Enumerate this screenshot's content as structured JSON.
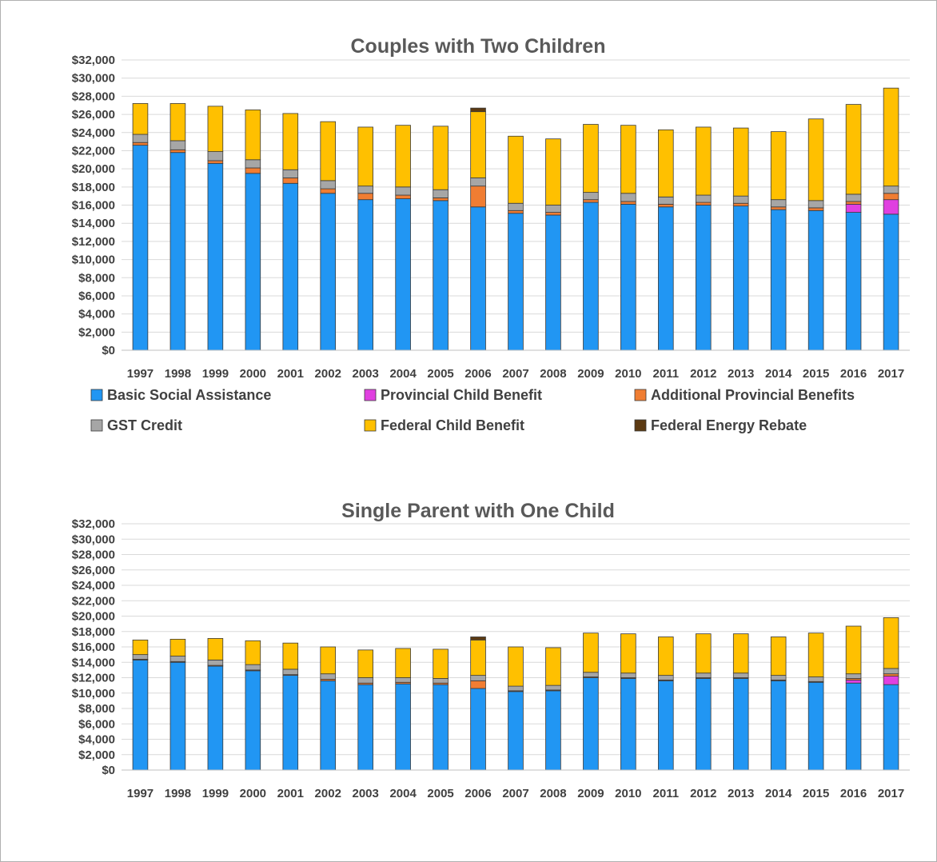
{
  "chart_data": [
    {
      "type": "bar",
      "stacked": true,
      "title": "Couples with Two Children",
      "categories": [
        "1997",
        "1998",
        "1999",
        "2000",
        "2001",
        "2002",
        "2003",
        "2004",
        "2005",
        "2006",
        "2007",
        "2008",
        "2009",
        "2010",
        "2011",
        "2012",
        "2013",
        "2014",
        "2015",
        "2016",
        "2017"
      ],
      "ylim": [
        0,
        32000
      ],
      "y_ticks": [
        "$0",
        "$2,000",
        "$4,000",
        "$6,000",
        "$8,000",
        "$10,000",
        "$12,000",
        "$14,000",
        "$16,000",
        "$18,000",
        "$20,000",
        "$22,000",
        "$24,000",
        "$26,000",
        "$28,000",
        "$30,000",
        "$32,000"
      ],
      "grid": true,
      "legend_position": "bottom",
      "series": [
        {
          "name": "Basic Social Assistance",
          "color": "#2196f3",
          "values": [
            22600,
            21800,
            20600,
            19500,
            18400,
            17300,
            16600,
            16700,
            16500,
            15800,
            15100,
            14900,
            16300,
            16100,
            15800,
            16000,
            15900,
            15500,
            15400,
            15200,
            15000
          ]
        },
        {
          "name": "Provincial Child Benefit",
          "color": "#e040e0",
          "values": [
            0,
            0,
            0,
            0,
            0,
            0,
            0,
            0,
            0,
            0,
            0,
            0,
            0,
            0,
            0,
            0,
            0,
            0,
            0,
            900,
            1600
          ]
        },
        {
          "name": "Additional Provincial Benefits",
          "color": "#f07d32",
          "values": [
            300,
            300,
            300,
            600,
            600,
            500,
            700,
            400,
            300,
            2300,
            300,
            300,
            300,
            300,
            300,
            300,
            300,
            300,
            300,
            300,
            700
          ]
        },
        {
          "name": "GST Credit",
          "color": "#a6a6a6",
          "values": [
            900,
            1000,
            1000,
            900,
            900,
            900,
            800,
            900,
            900,
            900,
            800,
            800,
            800,
            900,
            800,
            800,
            800,
            800,
            800,
            800,
            800
          ]
        },
        {
          "name": "Federal Child Benefit",
          "color": "#ffc000",
          "values": [
            3400,
            4100,
            5000,
            5500,
            6200,
            6500,
            6500,
            6800,
            7000,
            7300,
            7400,
            7300,
            7500,
            7500,
            7400,
            7500,
            7500,
            7500,
            9000,
            9900,
            10800
          ]
        },
        {
          "name": "Federal Energy Rebate",
          "color": "#5c3a12",
          "values": [
            0,
            0,
            0,
            0,
            0,
            0,
            0,
            0,
            0,
            400,
            0,
            0,
            0,
            0,
            0,
            0,
            0,
            0,
            0,
            0,
            0
          ]
        }
      ]
    },
    {
      "type": "bar",
      "stacked": true,
      "title": "Single Parent with One Child",
      "categories": [
        "1997",
        "1998",
        "1999",
        "2000",
        "2001",
        "2002",
        "2003",
        "2004",
        "2005",
        "2006",
        "2007",
        "2008",
        "2009",
        "2010",
        "2011",
        "2012",
        "2013",
        "2014",
        "2015",
        "2016",
        "2017"
      ],
      "ylim": [
        0,
        32000
      ],
      "y_ticks": [
        "$0",
        "$2,000",
        "$4,000",
        "$6,000",
        "$8,000",
        "$10,000",
        "$12,000",
        "$14,000",
        "$16,000",
        "$18,000",
        "$20,000",
        "$22,000",
        "$24,000",
        "$26,000",
        "$28,000",
        "$30,000",
        "$32,000"
      ],
      "grid": true,
      "legend_position": "none",
      "series": [
        {
          "name": "Basic Social Assistance",
          "color": "#2196f3",
          "values": [
            14300,
            14000,
            13500,
            12900,
            12300,
            11600,
            11100,
            11200,
            11100,
            10600,
            10200,
            10300,
            12000,
            11900,
            11600,
            11900,
            11900,
            11600,
            11400,
            11300,
            11100
          ]
        },
        {
          "name": "Provincial Child Benefit",
          "color": "#e040e0",
          "values": [
            0,
            0,
            0,
            0,
            0,
            0,
            0,
            0,
            0,
            0,
            0,
            0,
            0,
            0,
            0,
            0,
            0,
            0,
            0,
            400,
            1100
          ]
        },
        {
          "name": "Additional Provincial Benefits",
          "color": "#f07d32",
          "values": [
            100,
            100,
            100,
            100,
            100,
            200,
            200,
            200,
            200,
            1000,
            100,
            100,
            100,
            100,
            100,
            100,
            100,
            100,
            100,
            200,
            300
          ]
        },
        {
          "name": "GST Credit",
          "color": "#a6a6a6",
          "values": [
            600,
            700,
            700,
            700,
            700,
            700,
            700,
            600,
            600,
            700,
            600,
            600,
            600,
            600,
            600,
            600,
            600,
            600,
            600,
            600,
            700
          ]
        },
        {
          "name": "Federal Child Benefit",
          "color": "#ffc000",
          "values": [
            1900,
            2200,
            2800,
            3100,
            3400,
            3500,
            3600,
            3800,
            3800,
            4600,
            5100,
            4900,
            5100,
            5100,
            5000,
            5100,
            5100,
            5000,
            5700,
            6200,
            6600
          ]
        },
        {
          "name": "Federal Energy Rebate",
          "color": "#5c3a12",
          "values": [
            0,
            0,
            0,
            0,
            0,
            0,
            0,
            0,
            0,
            400,
            0,
            0,
            0,
            0,
            0,
            0,
            0,
            0,
            0,
            0,
            0
          ]
        }
      ]
    }
  ]
}
